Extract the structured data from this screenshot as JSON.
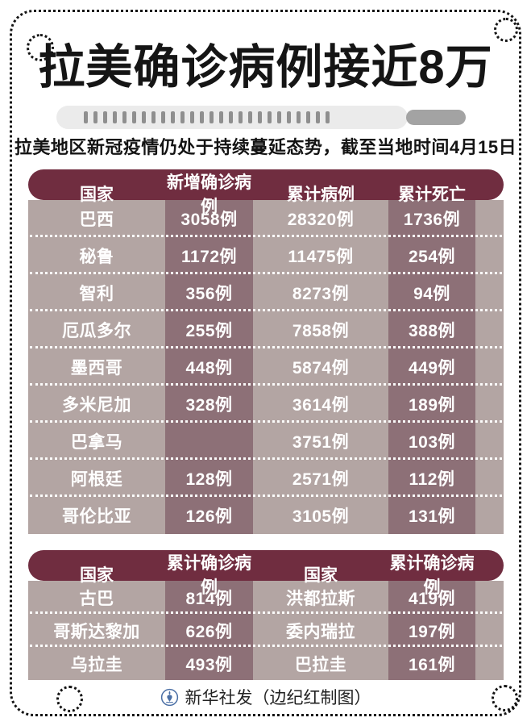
{
  "header": {
    "title": "拉美确诊病例接近8万",
    "subtitle": "拉美地区新冠疫情仍处于持续蔓延态势，截至当地时间4月15日"
  },
  "decor": {
    "thermometer_tick_count": 26
  },
  "colors": {
    "table_header_bg": "#702d40",
    "table_body_bg": "#b3a5a3",
    "table_band_bg": "#8d7077",
    "logo_blue": "#4a6fa5"
  },
  "chart_data": [
    {
      "type": "table",
      "title": "拉美确诊病例接近8万",
      "columns": [
        "国家",
        "新增确诊病例",
        "累计病例",
        "累计死亡"
      ],
      "rows": [
        [
          "巴西",
          "3058例",
          "28320例",
          "1736例"
        ],
        [
          "秘鲁",
          "1172例",
          "11475例",
          "254例"
        ],
        [
          "智利",
          "356例",
          "8273例",
          "94例"
        ],
        [
          "厄瓜多尔",
          "255例",
          "7858例",
          "388例"
        ],
        [
          "墨西哥",
          "448例",
          "5874例",
          "449例"
        ],
        [
          "多米尼加",
          "328例",
          "3614例",
          "189例"
        ],
        [
          "巴拿马",
          "",
          "3751例",
          "103例"
        ],
        [
          "阿根廷",
          "128例",
          "2571例",
          "112例"
        ],
        [
          "哥伦比亚",
          "126例",
          "3105例",
          "131例"
        ]
      ]
    },
    {
      "type": "table",
      "columns": [
        "国家",
        "累计确诊病例",
        "国家",
        "累计确诊病例"
      ],
      "rows": [
        [
          "古巴",
          "814例",
          "洪都拉斯",
          "419例"
        ],
        [
          "哥斯达黎加",
          "626例",
          "委内瑞拉",
          "197例"
        ],
        [
          "乌拉圭",
          "493例",
          "巴拉圭",
          "161例"
        ]
      ]
    }
  ],
  "footer": {
    "credit": "新华社发（边纪红制图）",
    "logo": "xinhua-emblem"
  }
}
